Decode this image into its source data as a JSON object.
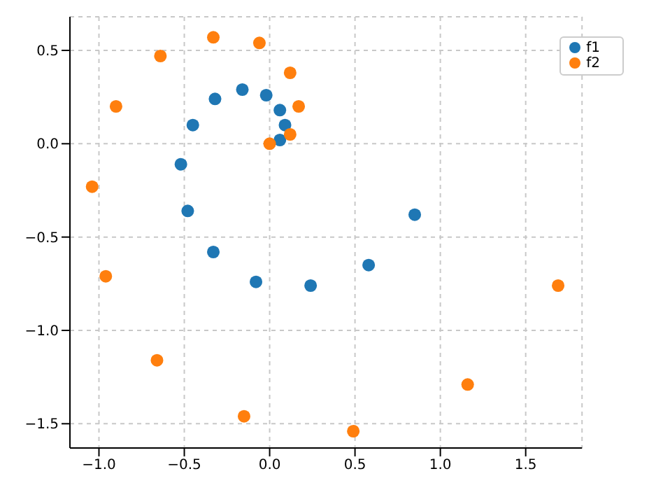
{
  "chart_data": {
    "type": "scatter",
    "legend": "top right",
    "grid": true,
    "marker": "circle",
    "xlim": [
      -1.17,
      1.83
    ],
    "ylim": [
      -1.63,
      0.68
    ],
    "xticks": [
      {
        "value": -1,
        "label": "−1.0"
      },
      {
        "value": -0.5,
        "label": "−0.5"
      },
      {
        "value": 0,
        "label": "0.0"
      },
      {
        "value": 0.5,
        "label": "0.5"
      },
      {
        "value": 1,
        "label": "1.0"
      },
      {
        "value": 1.5,
        "label": "1.5"
      }
    ],
    "yticks": [
      {
        "value": -1.5,
        "label": "−1.5"
      },
      {
        "value": -1,
        "label": "−1.0"
      },
      {
        "value": -0.5,
        "label": "−0.5"
      },
      {
        "value": 0,
        "label": "0.0"
      },
      {
        "value": 0.5,
        "label": "0.5"
      }
    ],
    "series": [
      {
        "name": "f1",
        "color": "#1f77b4",
        "x": [
          -0.32,
          -0.16,
          -0.02,
          -0.45,
          0.06,
          0.09,
          0.06,
          -0.52,
          -0.48,
          -0.33,
          -0.08,
          0.24,
          0.58,
          0.85
        ],
        "values": [
          0.24,
          0.29,
          0.26,
          0.1,
          0.18,
          0.1,
          0.02,
          -0.11,
          -0.36,
          -0.58,
          -0.74,
          -0.76,
          -0.65,
          -0.38
        ]
      },
      {
        "name": "f2",
        "color": "#ff7f0e",
        "x": [
          -0.33,
          -0.06,
          -0.64,
          0.12,
          -0.9,
          0.17,
          0.12,
          0,
          -1.04,
          -0.96,
          -0.66,
          -0.15,
          0.49,
          1.16,
          1.69
        ],
        "values": [
          0.57,
          0.54,
          0.47,
          0.38,
          0.2,
          0.2,
          0.05,
          0,
          -0.23,
          -0.71,
          -1.16,
          -1.46,
          -1.54,
          -1.29,
          -0.76
        ]
      }
    ]
  }
}
